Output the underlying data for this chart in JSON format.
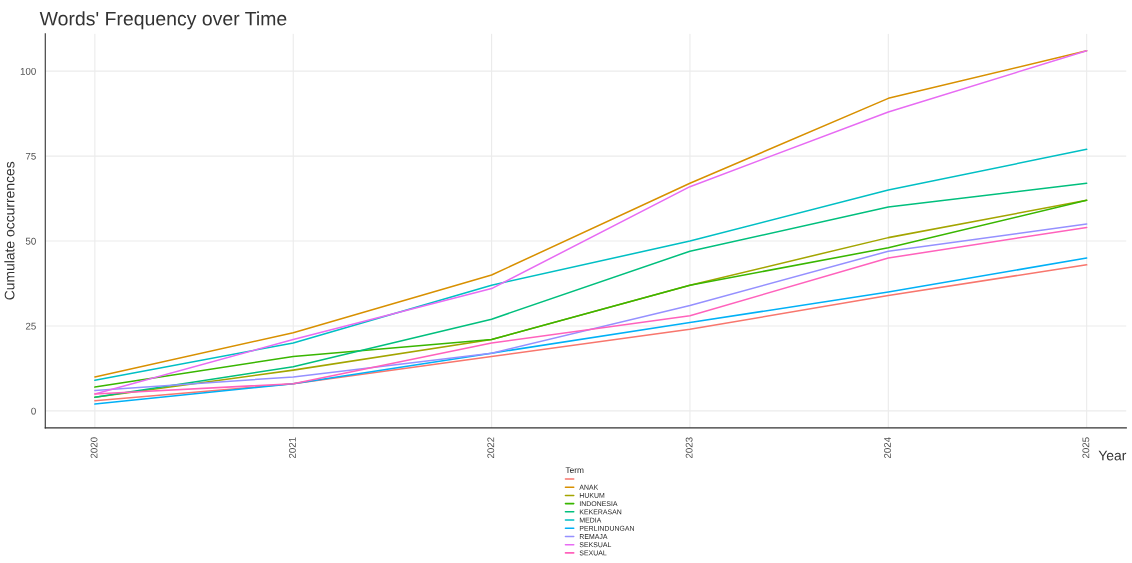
{
  "chart_data": {
    "type": "line",
    "title": "Words' Frequency over Time",
    "xlabel": "Year",
    "ylabel": "Cumulate occurrences",
    "legend_title": "Term",
    "x": [
      2020,
      2021,
      2022,
      2023,
      2024,
      2025
    ],
    "xlim": [
      2019.75,
      2025.2
    ],
    "xticks": [
      2020,
      2021,
      2022,
      2023,
      2024,
      2025
    ],
    "ylim": [
      -5,
      111
    ],
    "yticks": [
      0,
      25,
      50,
      75,
      100
    ],
    "grid": true,
    "legend": "bottom",
    "line_style": "solid",
    "series": [
      {
        "color": "#f8766d",
        "values": [
          3,
          8,
          16,
          24,
          34,
          43
        ]
      },
      {
        "name": "ANAK",
        "color": "#d89000",
        "values": [
          10,
          23,
          40,
          67,
          92,
          106
        ]
      },
      {
        "name": "HUKUM",
        "color": "#a3a500",
        "values": [
          4,
          12,
          21,
          37,
          51,
          62
        ]
      },
      {
        "name": "INDONESIA",
        "color": "#39b600",
        "values": [
          7,
          16,
          21,
          37,
          48,
          62
        ]
      },
      {
        "name": "KEKERASAN",
        "color": "#00bf7d",
        "values": [
          4,
          13,
          27,
          47,
          60,
          67
        ]
      },
      {
        "name": "MEDIA",
        "color": "#00bfc4",
        "values": [
          9,
          20,
          37,
          50,
          65,
          77
        ]
      },
      {
        "name": "PERLINDUNGAN",
        "color": "#00b0f6",
        "values": [
          2,
          8,
          17,
          26,
          35,
          45
        ]
      },
      {
        "name": "REMAJA",
        "color": "#9590ff",
        "values": [
          6,
          10,
          17,
          31,
          47,
          55
        ]
      },
      {
        "name": "SEKSUAL",
        "color": "#e76bf3",
        "values": [
          5,
          21,
          36,
          66,
          88,
          106
        ]
      },
      {
        "name": "SEXUAL",
        "color": "#ff62bc",
        "values": [
          5,
          8,
          20,
          28,
          45,
          54
        ]
      }
    ]
  }
}
